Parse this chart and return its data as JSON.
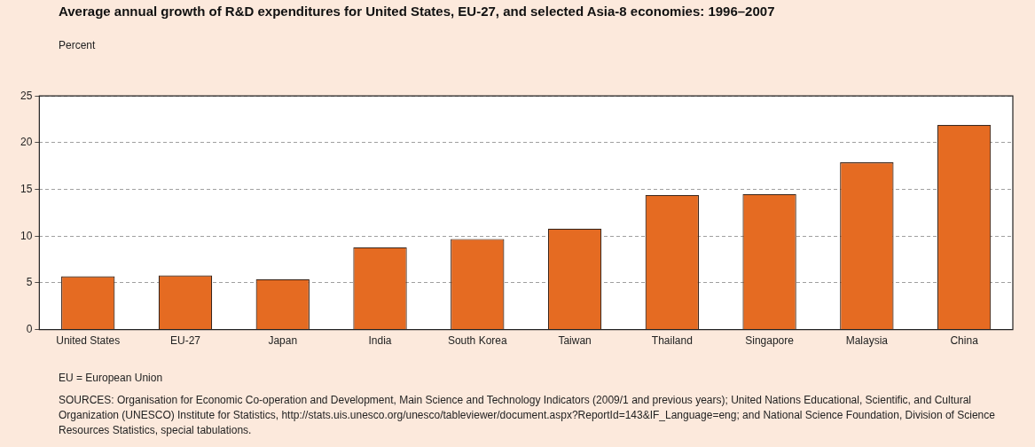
{
  "chart_data": {
    "type": "bar",
    "title": "Average annual growth of R&D expenditures for United States, EU-27, and selected Asia-8 economies: 1996–2007",
    "ylabel": "Percent",
    "categories": [
      "United States",
      "EU-27",
      "Japan",
      "India",
      "South Korea",
      "Taiwan",
      "Thailand",
      "Singapore",
      "Malaysia",
      "China"
    ],
    "values": [
      5.7,
      5.8,
      5.4,
      8.8,
      9.7,
      10.8,
      14.4,
      14.5,
      17.9,
      21.9
    ],
    "color": "#e56b22",
    "ylim": [
      0,
      25
    ],
    "yticks": [
      0,
      5,
      10,
      15,
      20,
      25
    ],
    "grid": "y",
    "annotations": [
      "EU = European Union",
      "SOURCES: Organisation for Economic Co-operation and Development, Main Science and Technology Indicators (2009/1 and previous years); United Nations Educational, Scientific, and Cultural Organization (UNESCO) Institute for Statistics, http://stats.uis.unesco.org/unesco/tableviewer/document.aspx?ReportId=143&IF_Language=eng; and National Science Foundation, Division of Science Resources Statistics, special tabulations."
    ]
  }
}
